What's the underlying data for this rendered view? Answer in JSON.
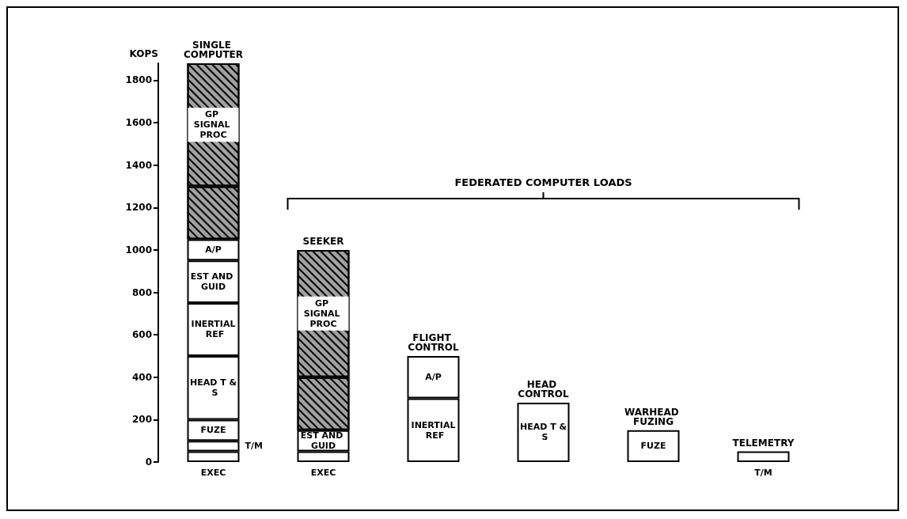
{
  "chart_data": {
    "type": "bar",
    "stacked": true,
    "ylabel": "KOPS",
    "categories": [
      "SINGLE COMPUTER",
      "SEEKER",
      "FLIGHT CONTROL",
      "HEAD CONTROL",
      "WARHEAD FUZING",
      "TELEMETRY"
    ],
    "series": [
      {
        "name": "EXEC",
        "color": "#ffffff",
        "values": [
          50,
          50,
          null,
          null,
          null,
          null
        ]
      },
      {
        "name": "T/M",
        "color": "#ffffff",
        "values": [
          50,
          null,
          null,
          null,
          null,
          50
        ]
      },
      {
        "name": "FUZE",
        "color": "#ffffff",
        "values": [
          100,
          null,
          null,
          null,
          150,
          null
        ]
      },
      {
        "name": "HEAD T & S",
        "color": "#ffffff",
        "values": [
          300,
          null,
          null,
          280,
          null,
          null
        ]
      },
      {
        "name": "INERTIAL REF",
        "color": "#ffffff",
        "values": [
          250,
          null,
          300,
          null,
          null,
          null
        ]
      },
      {
        "name": "EST AND GUID",
        "color": "#ffffff",
        "values": [
          200,
          100,
          null,
          null,
          null,
          null
        ]
      },
      {
        "name": "A/P",
        "color": "#ffffff",
        "values": [
          100,
          null,
          200,
          null,
          null,
          null
        ]
      },
      {
        "color": "#a0a0a0",
        "values": [
          250,
          250,
          null,
          null,
          null,
          null
        ]
      },
      {
        "name": "GP SIGNAL PROC",
        "color": "#a0a0a0",
        "values": [
          580,
          600,
          null,
          null,
          null,
          null
        ]
      }
    ],
    "ylim": [
      0,
      1880
    ],
    "yticks": [
      0,
      200,
      400,
      600,
      800,
      1000,
      1200,
      1400,
      1600,
      1800
    ],
    "annotations": [
      "FEDERATED COMPUTER LOADS"
    ],
    "grid": false,
    "legend": false
  }
}
